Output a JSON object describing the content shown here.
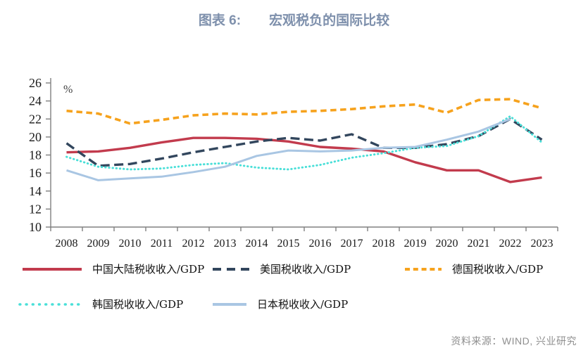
{
  "page": {
    "background": "#ffffff"
  },
  "header": {
    "figure_label": "图表 6:",
    "title": "宏观税负的国际比较",
    "title_color": "#7e90ac"
  },
  "source": {
    "text": "资料来源：WIND, 兴业研究"
  },
  "chart_data": {
    "type": "line",
    "title": "宏观税负的国际比较",
    "ylabel": "%",
    "xlabel": "",
    "grid": false,
    "legend_position": "bottom",
    "ylim": [
      10,
      26
    ],
    "ytick_step": 2,
    "axis_color": "#808080",
    "tick_label_color": "#1a1a1a",
    "unit_label_color": "#404040",
    "categories": [
      "2008",
      "2009",
      "2010",
      "2011",
      "2012",
      "2013",
      "2014",
      "2015",
      "2016",
      "2017",
      "2018",
      "2019",
      "2020",
      "2021",
      "2022",
      "2023"
    ],
    "series": [
      {
        "name": "中国大陆税收收入/GDP",
        "color": "#c23b4d",
        "line_style": "solid",
        "values": [
          18.3,
          18.4,
          18.8,
          19.4,
          19.9,
          19.9,
          19.8,
          19.5,
          18.9,
          18.7,
          18.4,
          17.2,
          16.3,
          16.3,
          15.0,
          15.5
        ]
      },
      {
        "name": "美国税收收入/GDP",
        "color": "#32465d",
        "line_style": "dashed",
        "values": [
          19.3,
          16.8,
          17.0,
          17.6,
          18.3,
          18.9,
          19.5,
          19.9,
          19.6,
          20.3,
          18.8,
          18.8,
          19.2,
          20.1,
          22.0,
          19.7
        ]
      },
      {
        "name": "德国税收收入/GDP",
        "color": "#f6a21d",
        "line_style": "dashed-short",
        "values": [
          22.9,
          22.6,
          21.5,
          21.9,
          22.4,
          22.6,
          22.5,
          22.8,
          22.9,
          23.1,
          23.4,
          23.6,
          22.7,
          24.1,
          24.2,
          23.2
        ]
      },
      {
        "name": "韩国税收收入/GDP",
        "color": "#49dfd8",
        "line_style": "dotted",
        "values": [
          17.8,
          16.7,
          16.4,
          16.5,
          16.9,
          17.1,
          16.6,
          16.4,
          16.9,
          17.7,
          18.2,
          18.8,
          19.0,
          20.1,
          22.3,
          19.4
        ]
      },
      {
        "name": "日本税收收入/GDP",
        "color": "#a9c6e3",
        "line_style": "solid",
        "values": [
          16.3,
          15.2,
          15.4,
          15.6,
          16.1,
          16.7,
          17.9,
          18.5,
          18.4,
          18.5,
          18.8,
          18.9,
          19.7,
          20.6,
          22.0,
          null
        ]
      }
    ]
  }
}
